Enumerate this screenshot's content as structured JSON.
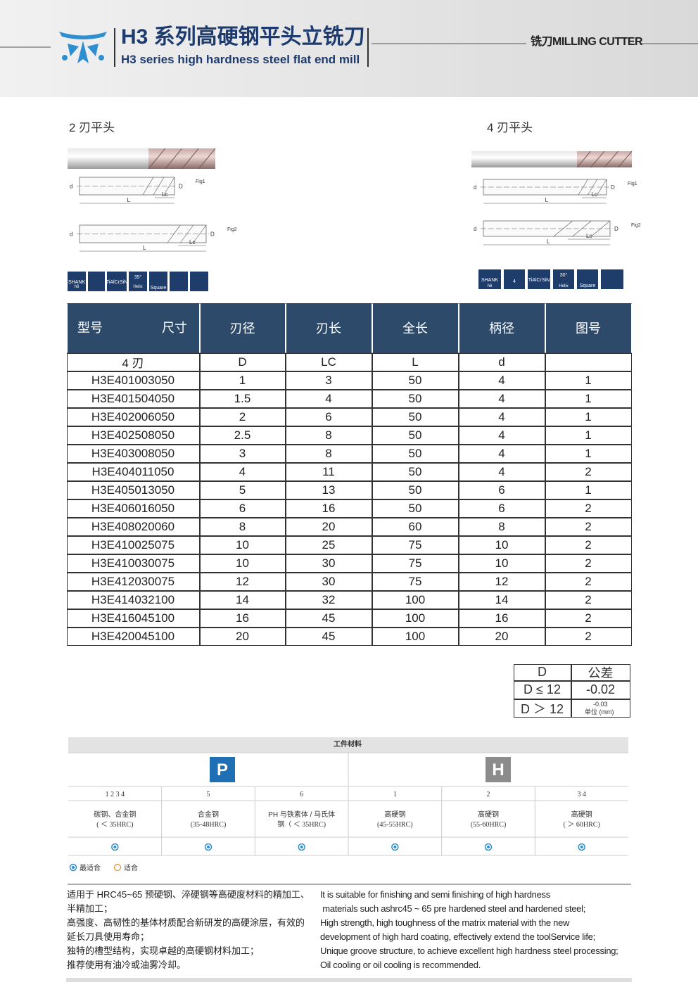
{
  "header": {
    "title_cn": "H3 系列高硬钢平头立铣刀",
    "title_en": "H3 series high hardness steel flat end mill",
    "category": "铣刀MILLING CUTTER"
  },
  "products": [
    {
      "label": "2 刃平头"
    },
    {
      "label": "4 刃平头"
    }
  ],
  "drawing": {
    "d": "d",
    "D": "D",
    "Lc": "Lc",
    "L": "L",
    "fig1": "Fig1",
    "fig2": "Fig2"
  },
  "icons": {
    "shank": "SHANK",
    "h6": "h6",
    "coating": "TiAlCrSiN",
    "helix": "Helix",
    "square": "Square",
    "helix_2": "35°",
    "helix_4": "30°",
    "flutes_4": "4"
  },
  "table": {
    "corner": [
      "型号",
      "尺寸"
    ],
    "headers": [
      "刃径",
      "刃长",
      "全长",
      "柄径",
      "图号"
    ],
    "subheader": [
      "4 刃",
      "D",
      "LC",
      "L",
      "d"
    ],
    "rows": [
      [
        "H3E401003050",
        "1",
        "3",
        "50",
        "4",
        "1"
      ],
      [
        "H3E401504050",
        "1.5",
        "4",
        "50",
        "4",
        "1"
      ],
      [
        "H3E402006050",
        "2",
        "6",
        "50",
        "4",
        "1"
      ],
      [
        "H3E402508050",
        "2.5",
        "8",
        "50",
        "4",
        "1"
      ],
      [
        "H3E403008050",
        "3",
        "8",
        "50",
        "4",
        "1"
      ],
      [
        "H3E404011050",
        "4",
        "11",
        "50",
        "4",
        "2"
      ],
      [
        "H3E405013050",
        "5",
        "13",
        "50",
        "6",
        "1"
      ],
      [
        "H3E406016050",
        "6",
        "16",
        "50",
        "6",
        "2"
      ],
      [
        "H3E408020060",
        "8",
        "20",
        "60",
        "8",
        "2"
      ],
      [
        "H3E410025075",
        "10",
        "25",
        "75",
        "10",
        "2"
      ],
      [
        "H3E410030075",
        "10",
        "30",
        "75",
        "10",
        "2"
      ],
      [
        "H3E412030075",
        "12",
        "30",
        "75",
        "12",
        "2"
      ],
      [
        "H3E414032100",
        "14",
        "32",
        "100",
        "14",
        "2"
      ],
      [
        "H3E416045100",
        "16",
        "45",
        "100",
        "16",
        "2"
      ],
      [
        "H3E420045100",
        "20",
        "45",
        "100",
        "20",
        "2"
      ]
    ]
  },
  "tolerance": {
    "headers": [
      "D",
      "公差"
    ],
    "rows": [
      [
        "D ≤ 12",
        "-0.02"
      ],
      [
        "D ＞ 12",
        "-0.03"
      ]
    ],
    "unit": "单位 (mm)"
  },
  "materials": {
    "title": "工件材料",
    "groups": [
      "P",
      "H"
    ],
    "columns": [
      {
        "index": "1 2 3 4",
        "name": "碳钢、合金钢",
        "hardness": "( ＜ 35HRC)"
      },
      {
        "index": "5",
        "name": "合金钢",
        "hardness": "(35-48HRC)"
      },
      {
        "index": "6",
        "name": "PH 与铁素体 / 马氏体",
        "hardness": "钢（ ＜ 35HRC)"
      },
      {
        "index": "1",
        "name": "高硬钢",
        "hardness": "(45-55HRC)"
      },
      {
        "index": "2",
        "name": "高硬钢",
        "hardness": "(55-60HRC)"
      },
      {
        "index": "3 4",
        "name": "高硬钢",
        "hardness": "( ＞ 60HRC)"
      }
    ],
    "legend": [
      "最适合",
      "适合"
    ]
  },
  "description": {
    "cn": [
      "适用于 HRC45~65 预硬钢、淬硬钢等高硬度材料的精加工、",
      "半精加工；",
      "高强度、高韧性的基体材质配合新研发的高硬涂层，有效的",
      "延长刀具使用寿命；",
      "独特的槽型结构，实现卓越的高硬钢材料加工；",
      "推荐使用有油冷或油雾冷却。"
    ],
    "en": [
      "It is suitable for finishing and semi finishing of high hardness",
      " materials such ashrc45 ~ 65 pre hardened steel and hardened steel;",
      "High strength, high toughness of the matrix material with the new",
      "development of high hard coating, effectively extend the toolService life;",
      "Unique groove structure, to achieve excellent high hardness steel processing;",
      "Oil cooling or oil cooling is recommended."
    ]
  }
}
